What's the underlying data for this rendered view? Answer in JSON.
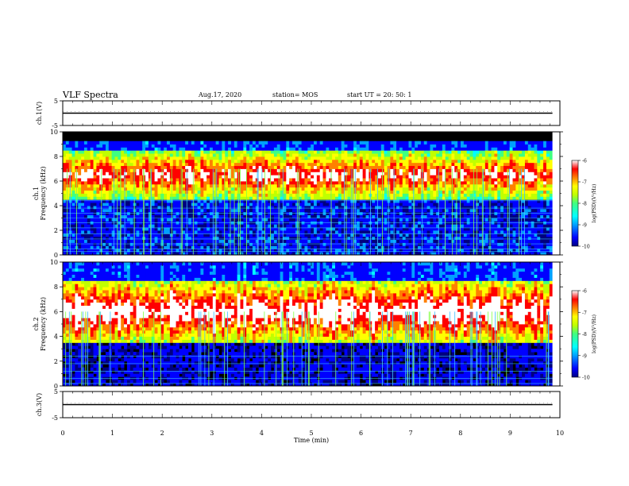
{
  "header": {
    "title": "VLF Spectra",
    "date": "Aug.17, 2020",
    "station": "station= MOS",
    "start": "start  UT =   20: 50: 1"
  },
  "chart_data": [
    {
      "type": "line",
      "panel": "ch1-waveform",
      "ylabel": "ch.1(V)",
      "ylim": [
        -5,
        5
      ],
      "yticks": [
        "5",
        "-5"
      ],
      "xlim": [
        0,
        10
      ],
      "series": [
        {
          "x": [
            0,
            9.85
          ],
          "y": [
            0,
            0
          ]
        }
      ]
    },
    {
      "type": "heatmap",
      "panel": "ch1-spectrogram",
      "ylabel": "ch.1\nFrequency (kHz)",
      "ylim": [
        0,
        10
      ],
      "yticks": [
        "0",
        "2",
        "4",
        "6",
        "8",
        "10"
      ],
      "xlim": [
        0,
        10
      ],
      "data_x_range": [
        0,
        9.85
      ],
      "colorbar": {
        "label": "log(PSD)(V²/Hz)",
        "range": [
          -10,
          -6
        ],
        "ticks": [
          "-6",
          "-7",
          "-8",
          "-9",
          "-10"
        ]
      },
      "band_kHz": [
        4.5,
        8.5
      ]
    },
    {
      "type": "heatmap",
      "panel": "ch2-spectrogram",
      "ylabel": "ch.2\nFrequency (kHz)",
      "ylim": [
        0,
        10
      ],
      "yticks": [
        "0",
        "2",
        "4",
        "6",
        "8",
        "10"
      ],
      "xlim": [
        0,
        10
      ],
      "data_x_range": [
        0,
        9.85
      ],
      "colorbar": {
        "label": "log(PSD)(V²/Hz)",
        "range": [
          -10,
          -6
        ],
        "ticks": [
          "-6",
          "-7",
          "-8",
          "-9",
          "-10"
        ]
      },
      "band_kHz": [
        3.5,
        8.5
      ]
    },
    {
      "type": "line",
      "panel": "ch3-waveform",
      "ylabel": "ch.3(V)",
      "ylim": [
        -5,
        5
      ],
      "yticks": [
        "5",
        "-5"
      ],
      "xlim": [
        0,
        10
      ],
      "series": [
        {
          "x": [
            0,
            9.85
          ],
          "y": [
            0,
            0
          ]
        }
      ]
    }
  ],
  "x_axis": {
    "label": "Time  (min)",
    "ticks": [
      "0",
      "1",
      "2",
      "3",
      "4",
      "5",
      "6",
      "7",
      "8",
      "9",
      "10"
    ]
  },
  "colors": {
    "colormap": [
      "#000080",
      "#0000ff",
      "#00a0ff",
      "#00ffff",
      "#40ff80",
      "#c0ff00",
      "#ffff00",
      "#ff8000",
      "#ff0000",
      "#ffffff"
    ]
  }
}
